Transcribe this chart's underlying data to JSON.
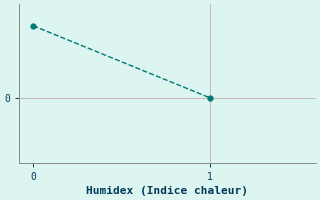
{
  "x": [
    0,
    1
  ],
  "y": [
    5,
    0
  ],
  "line_color": "#007878",
  "marker_color": "#007878",
  "background_color": "#dcf5f0",
  "grid_color": "#c8b8b8",
  "xlabel": "Humidex (Indice chaleur)",
  "xlabel_fontsize": 8,
  "xlabel_color": "#003858",
  "xlabel_bold": true,
  "tick_color": "#003858",
  "axis_color": "#888888",
  "xlim": [
    -0.08,
    1.6
  ],
  "ylim": [
    -4.5,
    6.5
  ],
  "xticks": [
    0,
    1
  ],
  "yticks": [
    0
  ],
  "line_style": "--",
  "line_width": 1.0,
  "marker": "o",
  "marker_size": 3.5,
  "font_family": "monospace"
}
